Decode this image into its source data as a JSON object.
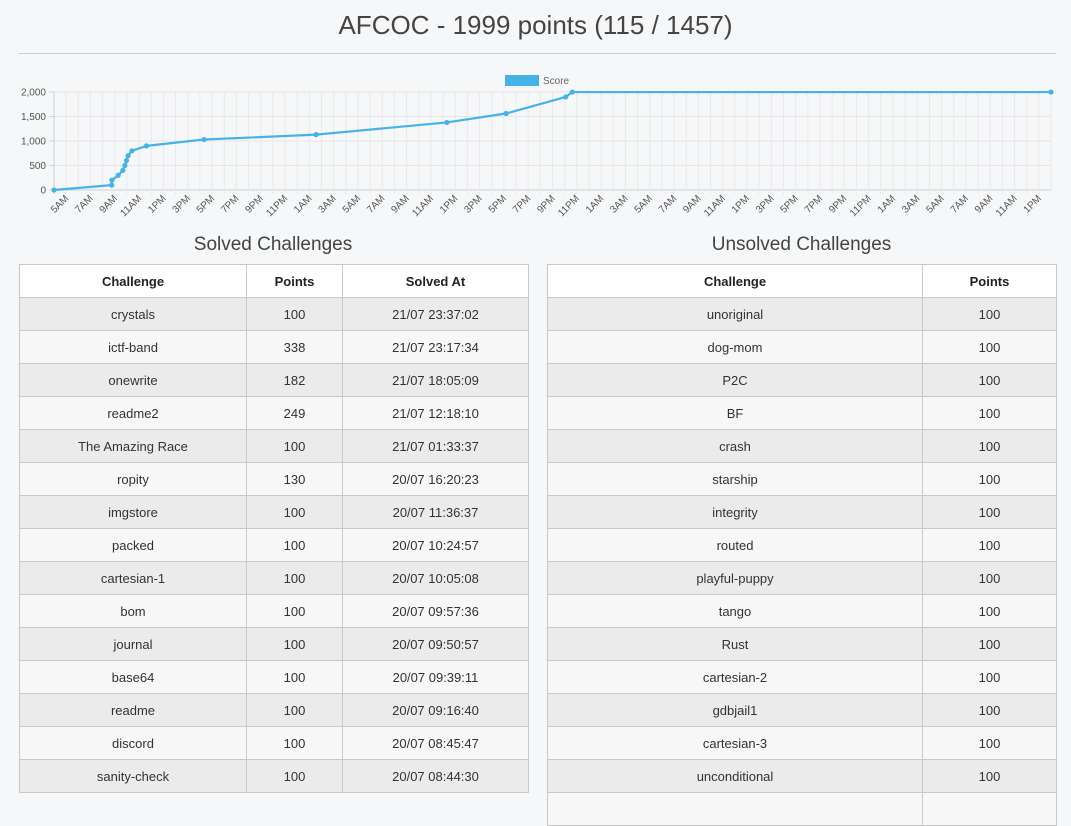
{
  "page": {
    "title": "AFCOC - 1999 points (115 / 1457)"
  },
  "chart_data": {
    "type": "line",
    "title": "",
    "xlabel": "",
    "ylabel": "",
    "legend": [
      "Score"
    ],
    "legend_position": "top-center",
    "grid": true,
    "color": "#46b3e6",
    "ylim": [
      0,
      2000
    ],
    "y_ticks": [
      "0",
      "500",
      "1,000",
      "1,500",
      "2,000"
    ],
    "x_tick_labels": [
      "5AM",
      "7AM",
      "9AM",
      "11AM",
      "1PM",
      "3PM",
      "5PM",
      "7PM",
      "9PM",
      "11PM",
      "1AM",
      "3AM",
      "5AM",
      "7AM",
      "9AM",
      "11AM",
      "1PM",
      "3PM",
      "5PM",
      "7PM",
      "9PM",
      "11PM",
      "1AM",
      "3AM",
      "5AM",
      "7AM",
      "9AM",
      "11AM",
      "1PM",
      "3PM",
      "5PM",
      "7PM",
      "9PM",
      "11PM",
      "1AM",
      "3AM",
      "5AM",
      "7AM",
      "9AM",
      "11AM",
      "1PM"
    ],
    "series": [
      {
        "name": "Score",
        "x_hours": [
          4.0,
          8.74,
          8.76,
          9.28,
          9.66,
          9.83,
          9.96,
          10.09,
          10.41,
          11.61,
          16.34,
          25.56,
          36.31,
          41.18,
          46.09,
          46.63
        ],
        "y": [
          0,
          100,
          200,
          300,
          400,
          500,
          600,
          700,
          800,
          900,
          1030,
          1130,
          1379,
          1561,
          1899,
          1999
        ]
      }
    ],
    "end_point": {
      "x_hours": 86.0,
      "y": 1999
    }
  },
  "solved": {
    "title": "Solved Challenges",
    "headers": [
      "Challenge",
      "Points",
      "Solved At"
    ],
    "rows": [
      [
        "crystals",
        "100",
        "21/07 23:37:02"
      ],
      [
        "ictf-band",
        "338",
        "21/07 23:17:34"
      ],
      [
        "onewrite",
        "182",
        "21/07 18:05:09"
      ],
      [
        "readme2",
        "249",
        "21/07 12:18:10"
      ],
      [
        "The Amazing Race",
        "100",
        "21/07 01:33:37"
      ],
      [
        "ropity",
        "130",
        "20/07 16:20:23"
      ],
      [
        "imgstore",
        "100",
        "20/07 11:36:37"
      ],
      [
        "packed",
        "100",
        "20/07 10:24:57"
      ],
      [
        "cartesian-1",
        "100",
        "20/07 10:05:08"
      ],
      [
        "bom",
        "100",
        "20/07 09:57:36"
      ],
      [
        "journal",
        "100",
        "20/07 09:50:57"
      ],
      [
        "base64",
        "100",
        "20/07 09:39:11"
      ],
      [
        "readme",
        "100",
        "20/07 09:16:40"
      ],
      [
        "discord",
        "100",
        "20/07 08:45:47"
      ],
      [
        "sanity-check",
        "100",
        "20/07 08:44:30"
      ]
    ]
  },
  "unsolved": {
    "title": "Unsolved Challenges",
    "headers": [
      "Challenge",
      "Points"
    ],
    "rows": [
      [
        "unoriginal",
        "100"
      ],
      [
        "dog-mom",
        "100"
      ],
      [
        "P2C",
        "100"
      ],
      [
        "BF",
        "100"
      ],
      [
        "crash",
        "100"
      ],
      [
        "starship",
        "100"
      ],
      [
        "integrity",
        "100"
      ],
      [
        "routed",
        "100"
      ],
      [
        "playful-puppy",
        "100"
      ],
      [
        "tango",
        "100"
      ],
      [
        "Rust",
        "100"
      ],
      [
        "cartesian-2",
        "100"
      ],
      [
        "gdbjail1",
        "100"
      ],
      [
        "cartesian-3",
        "100"
      ],
      [
        "unconditional",
        "100"
      ],
      [
        "",
        ""
      ]
    ]
  }
}
